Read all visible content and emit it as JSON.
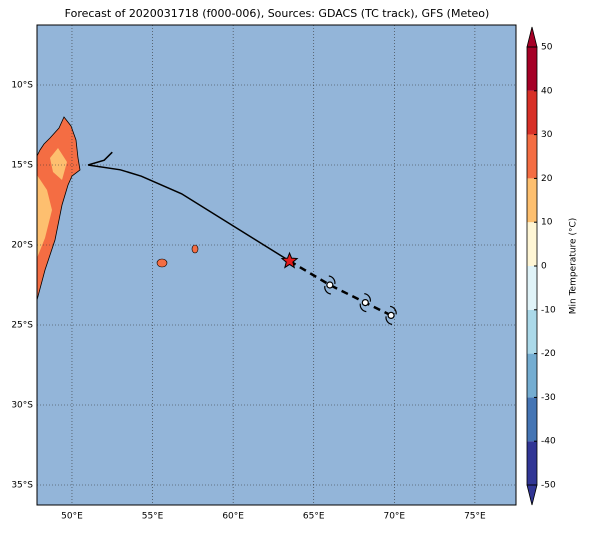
{
  "map": {
    "title": "Forecast of 2020031718 (f000-006), Sources: GDACS (TC track), GFS (Meteo)",
    "lonlim": [
      47.83,
      77.55
    ],
    "latlim": [
      -36.25,
      -6.25
    ],
    "lonticks": [
      {
        "value": 50,
        "label": "50°E"
      },
      {
        "value": 55,
        "label": "55°E"
      },
      {
        "value": 60,
        "label": "60°E"
      },
      {
        "value": 65,
        "label": "65°E"
      },
      {
        "value": 70,
        "label": "70°E"
      },
      {
        "value": 75,
        "label": "75°E"
      }
    ],
    "latticks": [
      {
        "value": -10,
        "label": "10°S"
      },
      {
        "value": -15,
        "label": "15°S"
      },
      {
        "value": -20,
        "label": "20°S"
      },
      {
        "value": -25,
        "label": "25°S"
      },
      {
        "value": -30,
        "label": "30°S"
      },
      {
        "value": -35,
        "label": "35°S"
      }
    ],
    "grid": true,
    "ocean_color": "#93b5d9",
    "track": {
      "past": {
        "lon": [
          52.5,
          52.0,
          51.0,
          53.0,
          54.3,
          56.8,
          63.5
        ],
        "lat": [
          -14.2,
          -14.7,
          -15.0,
          -15.3,
          -15.7,
          -16.8,
          -21.0
        ]
      },
      "forecast": {
        "lon": [
          63.5,
          66.0,
          68.2,
          69.8
        ],
        "lat": [
          -21.0,
          -22.5,
          -23.6,
          -24.4
        ]
      }
    },
    "colorbar": {
      "label": "Min Temperature (°C)",
      "ticks": [
        -50,
        -40,
        -30,
        -20,
        -10,
        0,
        10,
        20,
        30,
        40,
        50
      ],
      "colors": [
        "#313695",
        "#4575b4",
        "#74add1",
        "#abd9e9",
        "#e0f3f8",
        "#fff6d5",
        "#fdbf6f",
        "#f46d43",
        "#d73027",
        "#a50026"
      ],
      "extend": "both"
    }
  }
}
